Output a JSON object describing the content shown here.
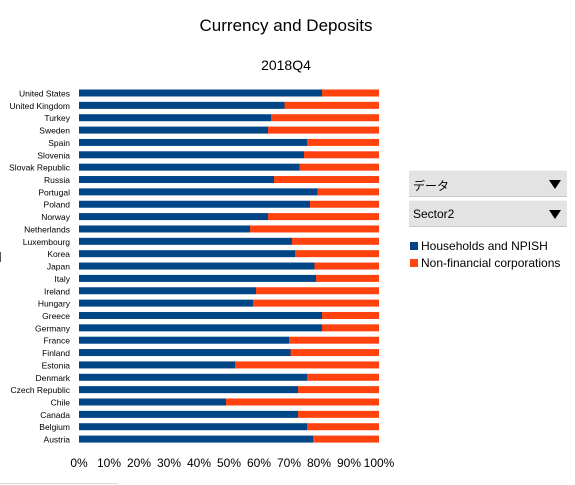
{
  "filters": {
    "data_label": "データ",
    "sector_label": "Sector2"
  },
  "colors": {
    "households": "#004586",
    "corporations": "#ff420e"
  },
  "icons": {
    "dropdown": "triangle-down"
  },
  "chart_data": {
    "type": "bar",
    "orientation": "horizontal",
    "stacking": "percent",
    "title": "Currency and Deposits",
    "subtitle": "2018Q4",
    "categories": [
      "United States",
      "United Kingdom",
      "Turkey",
      "Sweden",
      "Spain",
      "Slovenia",
      "Slovak Republic",
      "Russia",
      "Portugal",
      "Poland",
      "Norway",
      "Netherlands",
      "Luxembourg",
      "Korea",
      "Japan",
      "Italy",
      "Ireland",
      "Hungary",
      "Greece",
      "Germany",
      "France",
      "Finland",
      "Estonia",
      "Denmark",
      "Czech Republic",
      "Chile",
      "Canada",
      "Belgium",
      "Austria"
    ],
    "series": [
      {
        "name": "Households and NPISH",
        "values": [
          81,
          68.5,
          64,
          63,
          76,
          75,
          73.5,
          65,
          79.5,
          77,
          63,
          57,
          71,
          72,
          78.5,
          79,
          59,
          58,
          81,
          81,
          70,
          70.5,
          52,
          76,
          73,
          49,
          73,
          76,
          78
        ]
      },
      {
        "name": "Non-financial corporations",
        "values": [
          19,
          31.5,
          36,
          37,
          24,
          25,
          26.5,
          35,
          20.5,
          23,
          37,
          43,
          29,
          28,
          21.5,
          21,
          41,
          42,
          19,
          19,
          30,
          29.5,
          48,
          24,
          27,
          51,
          27,
          24,
          22
        ]
      }
    ],
    "xlim": [
      0,
      100
    ],
    "xticks": [
      "0%",
      "10%",
      "20%",
      "30%",
      "40%",
      "50%",
      "60%",
      "70%",
      "80%",
      "90%",
      "100%"
    ],
    "grid": false,
    "legend_position": "right"
  }
}
